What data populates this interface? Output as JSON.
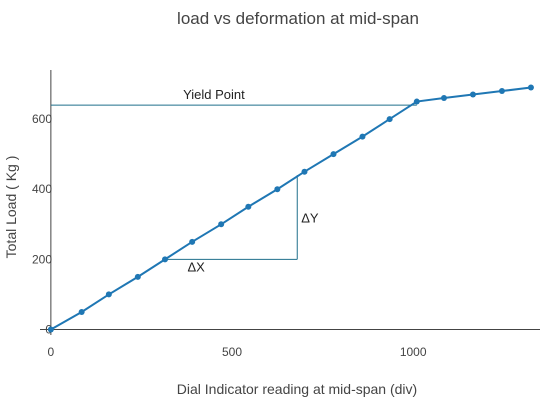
{
  "chart_data": {
    "type": "line",
    "title": "load vs deformation at mid-span",
    "xlabel": "Dial Indicator reading at mid-span (div)",
    "ylabel": "Total Load ( Kg )",
    "xlim": [
      -30,
      1350
    ],
    "ylim": [
      -10,
      740
    ],
    "x_ticks": [
      0,
      500,
      1000
    ],
    "y_ticks": [
      0,
      200,
      400,
      600
    ],
    "grid": "none",
    "legend": "none",
    "series": [
      {
        "color": "#1f77b4",
        "x": [
          0,
          85,
          160,
          240,
          315,
          390,
          470,
          545,
          625,
          700,
          780,
          860,
          935,
          1010,
          1085,
          1165,
          1245,
          1325
        ],
        "y": [
          0,
          50,
          100,
          150,
          200,
          250,
          300,
          350,
          400,
          450,
          500,
          550,
          600,
          650,
          660,
          670,
          680,
          690
        ]
      }
    ],
    "annotations": {
      "yield_label": "Yield Point",
      "yield_y": 640,
      "yield_x_end": 1010,
      "dx_label": "ΔX",
      "dy_label": "ΔY",
      "triangle": {
        "x0": 315,
        "x1": 680,
        "y0": 200,
        "y1": 440
      }
    },
    "shape_color": "#1f6f8b"
  }
}
